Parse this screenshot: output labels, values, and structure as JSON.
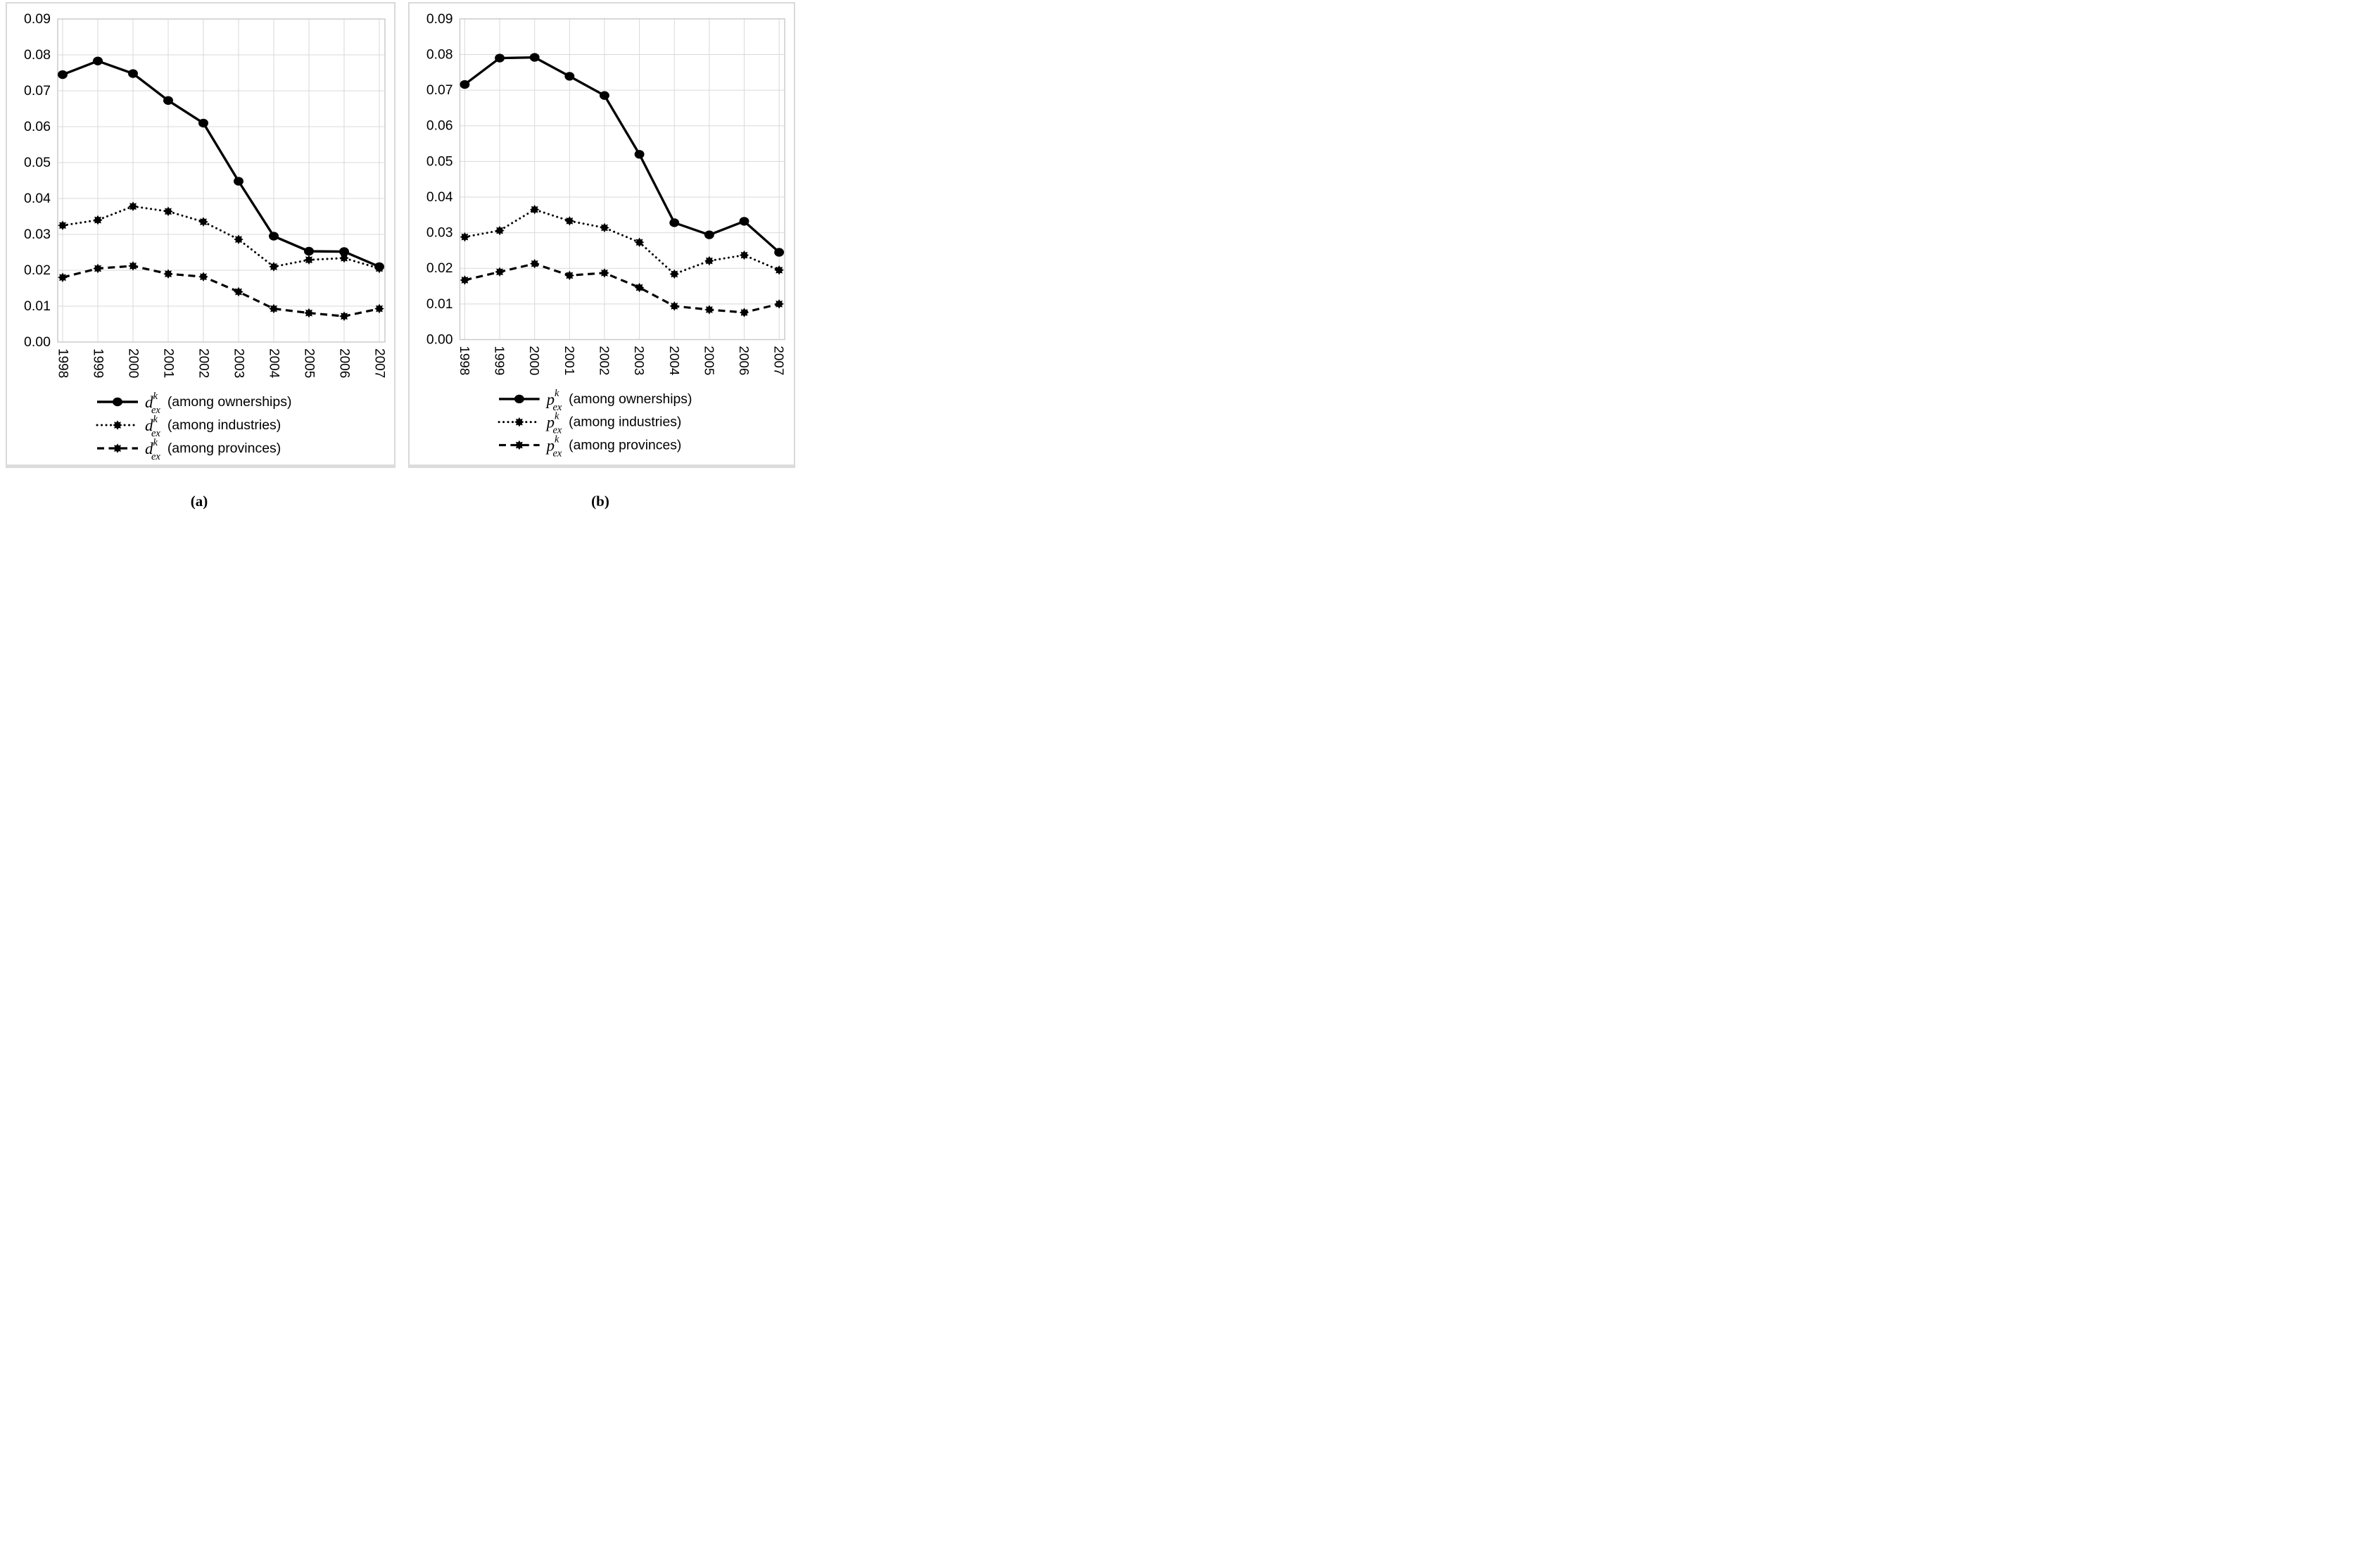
{
  "colors": {
    "series": "#000000",
    "gridline": "#d9d9d9",
    "plot_border": "#c8c8c8",
    "panel_border": "#d9d9d9",
    "text": "#000000",
    "background": "#ffffff"
  },
  "chart_data": [
    {
      "type": "line",
      "panel_caption": "(a)",
      "variable": {
        "letter": "d",
        "sup": "k",
        "sub": "ex"
      },
      "x": [
        "1998",
        "1999",
        "2000",
        "2001",
        "2002",
        "2003",
        "2004",
        "2005",
        "2006",
        "2007"
      ],
      "ylim": [
        0,
        0.09
      ],
      "y_ticks": [
        "0.09",
        "0.08",
        "0.07",
        "0.06",
        "0.05",
        "0.04",
        "0.03",
        "0.02",
        "0.01",
        "0.00"
      ],
      "grid": true,
      "legend_position": "bottom",
      "series": [
        {
          "name": "d^k_ex (among ownerships)",
          "suffix": "(among ownerships)",
          "line": "solid",
          "marker": "circle",
          "values": [
            0.0745,
            0.0783,
            0.0748,
            0.0673,
            0.061,
            0.0448,
            0.0295,
            0.0253,
            0.0252,
            0.021
          ]
        },
        {
          "name": "d^k_ex (among industries)",
          "suffix": "(among industries)",
          "line": "dotted",
          "marker": "star",
          "values": [
            0.0325,
            0.034,
            0.0378,
            0.0364,
            0.0335,
            0.0286,
            0.021,
            0.0229,
            0.0234,
            0.0205
          ]
        },
        {
          "name": "d^k_ex (among provinces)",
          "suffix": "(among provinces)",
          "line": "dashed",
          "marker": "star",
          "values": [
            0.018,
            0.0205,
            0.0212,
            0.019,
            0.0182,
            0.014,
            0.0093,
            0.0081,
            0.0072,
            0.0093
          ]
        }
      ]
    },
    {
      "type": "line",
      "panel_caption": "(b)",
      "variable": {
        "letter": "p",
        "sup": "k",
        "sub": "ex"
      },
      "x": [
        "1998",
        "1999",
        "2000",
        "2001",
        "2002",
        "2003",
        "2004",
        "2005",
        "2006",
        "2007"
      ],
      "ylim": [
        0,
        0.09
      ],
      "y_ticks": [
        "0.09",
        "0.08",
        "0.07",
        "0.06",
        "0.05",
        "0.04",
        "0.03",
        "0.02",
        "0.01",
        "0.00"
      ],
      "grid": true,
      "legend_position": "bottom",
      "series": [
        {
          "name": "p^k_ex (among ownerships)",
          "suffix": "(among ownerships)",
          "line": "solid",
          "marker": "circle",
          "values": [
            0.0716,
            0.079,
            0.0792,
            0.0739,
            0.0685,
            0.052,
            0.0328,
            0.0294,
            0.0332,
            0.0245
          ]
        },
        {
          "name": "p^k_ex (among industries)",
          "suffix": "(among industries)",
          "line": "dotted",
          "marker": "star",
          "values": [
            0.0288,
            0.0306,
            0.0365,
            0.0333,
            0.0314,
            0.0273,
            0.0184,
            0.0221,
            0.0237,
            0.0195
          ]
        },
        {
          "name": "p^k_ex (among provinces)",
          "suffix": "(among provinces)",
          "line": "dashed",
          "marker": "star",
          "values": [
            0.0167,
            0.019,
            0.0213,
            0.018,
            0.0187,
            0.0146,
            0.0094,
            0.0084,
            0.0076,
            0.01
          ]
        }
      ]
    }
  ]
}
